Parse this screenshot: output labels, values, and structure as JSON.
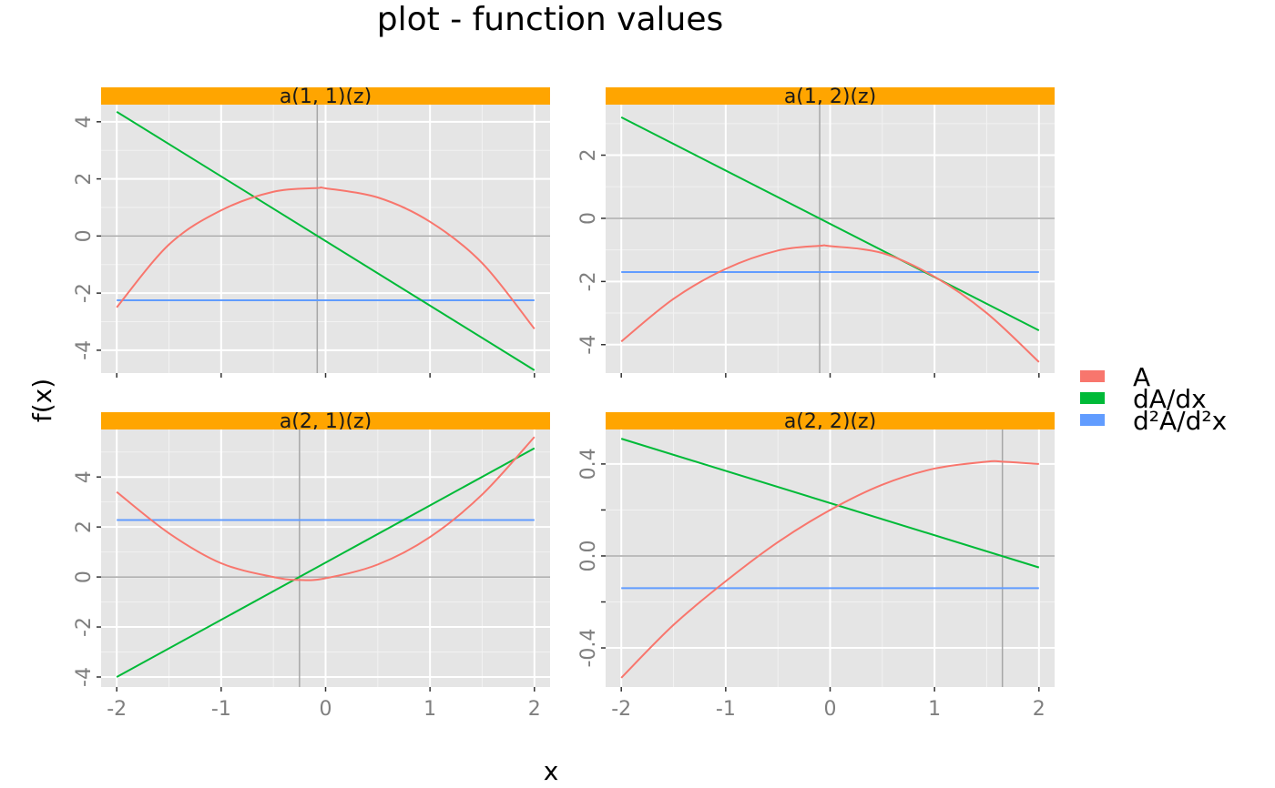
{
  "title": "plot - function values",
  "chart_data": {
    "type": "line",
    "title": "plot - function values",
    "xlabel": "x",
    "ylabel": "f(x)",
    "grid": true,
    "legend_position": "right",
    "legend": [
      {
        "key": "A",
        "label": "A",
        "color": "#F8766D"
      },
      {
        "key": "dA",
        "label": "dA/dx",
        "color": "#00BA38"
      },
      {
        "key": "d2A",
        "label": "d²A/d²x",
        "color": "#619CFF"
      }
    ],
    "strip_color": "#FFA500",
    "panels": [
      {
        "label": "a(1, 1)(z)",
        "xlim": [
          -2.15,
          2.15
        ],
        "ylim": [
          -4.8,
          4.6
        ],
        "x_ticks": [
          -2,
          -1,
          0,
          1,
          2
        ],
        "x_tick_labels": [
          "-2",
          "-1",
          "0",
          "1",
          "2"
        ],
        "y_ticks": [
          -4,
          -2,
          0,
          2,
          4
        ],
        "y_tick_labels": [
          "-4",
          "-2",
          "0",
          "2",
          "4"
        ],
        "vline": -0.08,
        "series": {
          "A": {
            "x": [
              -2,
              -1.5,
              -1,
              -0.5,
              -0.08,
              0,
              0.5,
              1,
              1.5,
              2
            ],
            "y": [
              -2.5,
              -0.3,
              0.9,
              1.55,
              1.68,
              1.67,
              1.35,
              0.5,
              -0.95,
              -3.25
            ]
          },
          "dA": {
            "x": [
              -2,
              2
            ],
            "y": [
              4.35,
              -4.7
            ]
          },
          "d2A": {
            "x": [
              -2,
              2
            ],
            "y": [
              -2.25,
              -2.25
            ]
          }
        }
      },
      {
        "label": "a(1, 2)(z)",
        "xlim": [
          -2.15,
          2.15
        ],
        "ylim": [
          -4.9,
          3.6
        ],
        "x_ticks": [
          -2,
          -1,
          0,
          1,
          2
        ],
        "x_tick_labels": [
          "-2",
          "-1",
          "0",
          "1",
          "2"
        ],
        "y_ticks": [
          -4,
          -2,
          0,
          2
        ],
        "y_tick_labels": [
          "-4",
          "-2",
          "0",
          "2"
        ],
        "vline": -0.1,
        "series": {
          "A": {
            "x": [
              -2,
              -1.5,
              -1,
              -0.5,
              -0.1,
              0,
              0.5,
              1,
              1.5,
              2
            ],
            "y": [
              -3.9,
              -2.55,
              -1.6,
              -1.02,
              -0.87,
              -0.88,
              -1.1,
              -1.85,
              -3.0,
              -4.55
            ]
          },
          "dA": {
            "x": [
              -2,
              2
            ],
            "y": [
              3.2,
              -3.55
            ]
          },
          "d2A": {
            "x": [
              -2,
              2
            ],
            "y": [
              -1.7,
              -1.7
            ]
          }
        }
      },
      {
        "label": "a(2, 1)(z)",
        "xlim": [
          -2.15,
          2.15
        ],
        "ylim": [
          -4.4,
          5.9
        ],
        "x_ticks": [
          -2,
          -1,
          0,
          1,
          2
        ],
        "x_tick_labels": [
          "-2",
          "-1",
          "0",
          "1",
          "2"
        ],
        "y_ticks": [
          -4,
          -2,
          0,
          2,
          4
        ],
        "y_tick_labels": [
          "-4",
          "-2",
          "0",
          "2",
          "4"
        ],
        "vline": -0.25,
        "series": {
          "A": {
            "x": [
              -2,
              -1.5,
              -1,
              -0.5,
              -0.25,
              0,
              0.5,
              1,
              1.5,
              2
            ],
            "y": [
              3.4,
              1.75,
              0.55,
              0.0,
              -0.12,
              -0.05,
              0.5,
              1.6,
              3.3,
              5.6
            ]
          },
          "dA": {
            "x": [
              -2,
              2
            ],
            "y": [
              -4.0,
              5.15
            ]
          },
          "d2A": {
            "x": [
              -2,
              2
            ],
            "y": [
              2.28,
              2.28
            ]
          }
        }
      },
      {
        "label": "a(2, 2)(z)",
        "xlim": [
          -2.15,
          2.15
        ],
        "ylim": [
          -0.57,
          0.55
        ],
        "x_ticks": [
          -2,
          -1,
          0,
          1,
          2
        ],
        "x_tick_labels": [
          "-2",
          "-1",
          "0",
          "1",
          "2"
        ],
        "y_ticks": [
          -0.4,
          0.0,
          0.4
        ],
        "y_tick_labels": [
          "-0.4",
          "0.0",
          "0.4"
        ],
        "y_minor_ticks": [
          -0.2,
          0.2
        ],
        "vline": 1.65,
        "series": {
          "A": {
            "x": [
              -2,
              -1.5,
              -1,
              -0.5,
              0,
              0.5,
              1,
              1.5,
              1.65,
              2
            ],
            "y": [
              -0.53,
              -0.3,
              -0.11,
              0.06,
              0.2,
              0.31,
              0.38,
              0.41,
              0.41,
              0.4
            ]
          },
          "dA": {
            "x": [
              -2,
              2
            ],
            "y": [
              0.51,
              -0.05
            ]
          },
          "d2A": {
            "x": [
              -2,
              2
            ],
            "y": [
              -0.14,
              -0.14
            ]
          }
        }
      }
    ]
  }
}
